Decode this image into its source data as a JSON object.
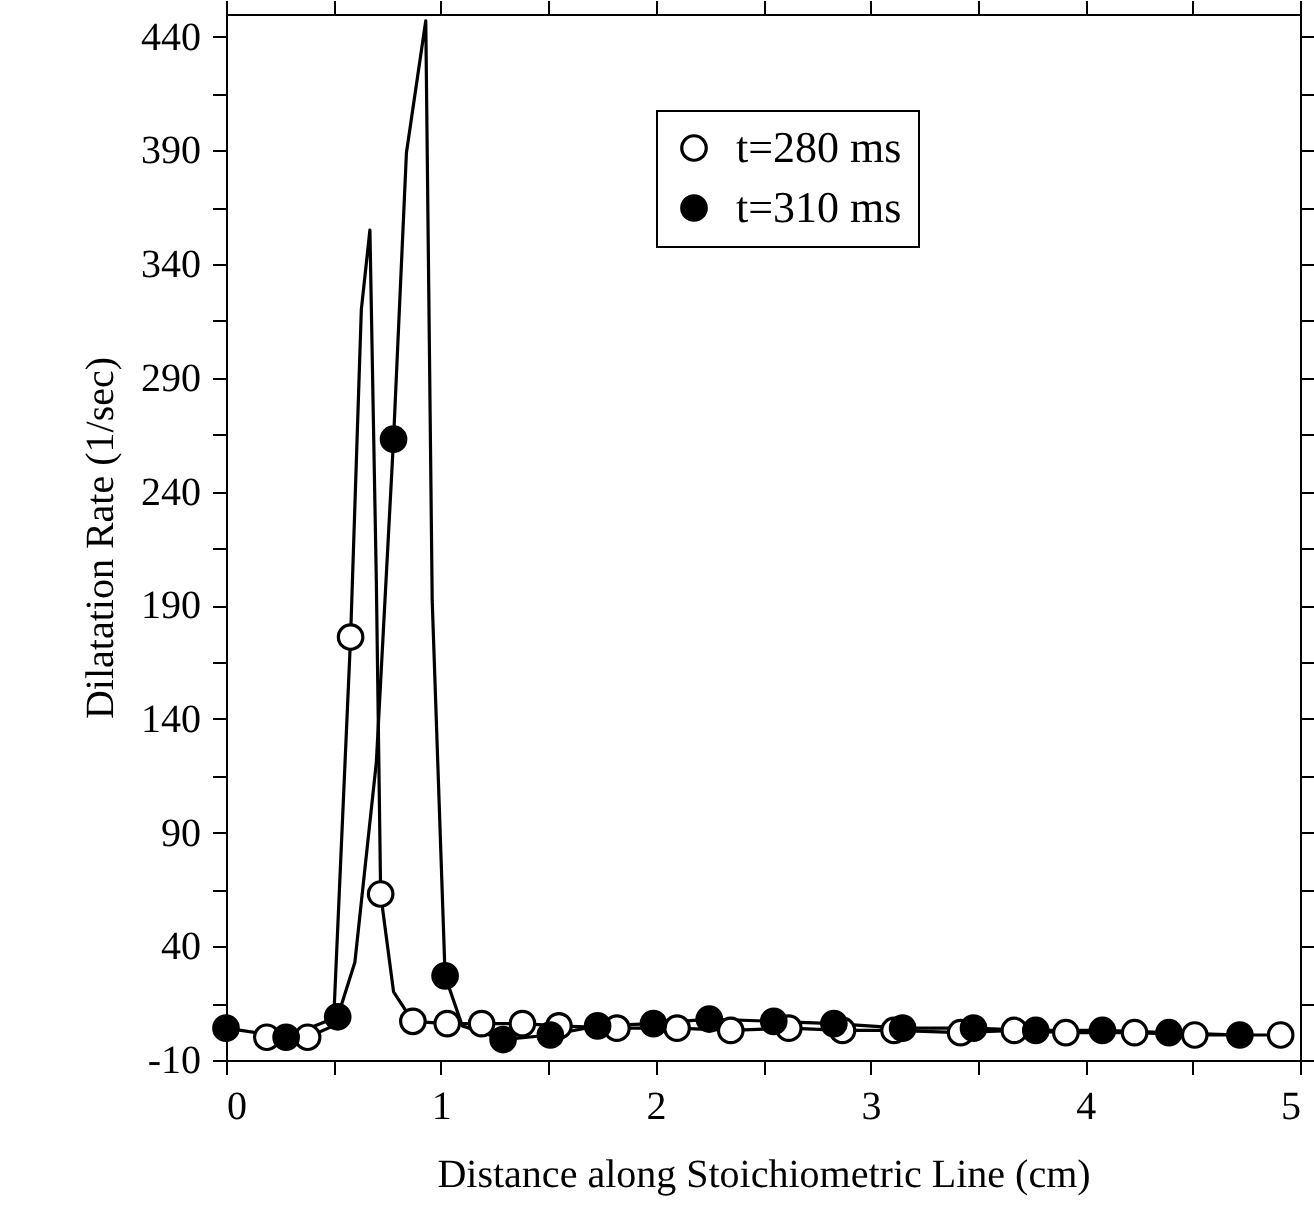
{
  "chart_data": {
    "type": "line",
    "xlabel": "Distance along Stoichiometric Line (cm)",
    "ylabel": "Dilatation Rate (1/sec)",
    "xlim": [
      0,
      5
    ],
    "ylim": [
      -10,
      450
    ],
    "xticks": [
      0,
      {
        "value": 0.5,
        "label": null
      },
      1,
      {
        "value": 1.5,
        "label": null
      },
      2,
      {
        "value": 2.5,
        "label": null
      },
      3,
      {
        "value": 3.5,
        "label": null
      },
      4,
      {
        "value": 4.5,
        "label": null
      },
      5
    ],
    "yticks": [
      -10,
      {
        "value": 15,
        "label": null
      },
      40,
      {
        "value": 65,
        "label": null
      },
      90,
      {
        "value": 115,
        "label": null
      },
      140,
      {
        "value": 165,
        "label": null
      },
      190,
      {
        "value": 215,
        "label": null
      },
      240,
      {
        "value": 265,
        "label": null
      },
      290,
      {
        "value": 315,
        "label": null
      },
      340,
      {
        "value": 365,
        "label": null
      },
      390,
      {
        "value": 415,
        "label": null
      },
      440
    ],
    "grid": false,
    "legend": "top right",
    "line_style": "solid",
    "series": [
      {
        "marker": "none",
        "color": "#000000",
        "x": [
          0.19,
          0.38,
          0.5,
          0.58,
          0.63,
          0.67,
          0.7,
          0.72,
          0.78,
          0.87,
          1.03,
          1.19,
          1.38,
          1.55,
          1.82,
          2.1,
          2.35,
          2.62,
          2.87,
          3.11,
          3.42,
          3.67,
          3.91,
          4.23,
          4.51,
          4.91
        ],
        "values": [
          0,
          0,
          5,
          176,
          320,
          355,
          200,
          63,
          20,
          7,
          6,
          6,
          6,
          5,
          4,
          4,
          3,
          4,
          3,
          3,
          2,
          3,
          2,
          2,
          1,
          1
        ]
      },
      {
        "marker": "none",
        "color": "#000000",
        "x": [
          0,
          0.28,
          0.52,
          0.6,
          0.7,
          0.78,
          0.84,
          0.93,
          0.96,
          1.02,
          1.1,
          1.29,
          1.51,
          1.73,
          1.99,
          2.25,
          2.55,
          2.83,
          3.15,
          3.48,
          3.77,
          4.08,
          4.39,
          4.72
        ],
        "values": [
          4,
          0,
          9,
          33,
          121,
          263,
          389,
          447,
          192,
          27,
          5,
          -1,
          1,
          5,
          6,
          8,
          7,
          6,
          4,
          4,
          3,
          3,
          2,
          1
        ]
      },
      {
        "type": "scatter",
        "name": "t=280 ms",
        "marker": "circle",
        "color": "#ffffff",
        "x": [
          0.19,
          0.38,
          0.58,
          0.72,
          0.87,
          1.03,
          1.19,
          1.38,
          1.55,
          1.82,
          2.1,
          2.35,
          2.62,
          2.87,
          3.11,
          3.42,
          3.67,
          3.91,
          4.23,
          4.51,
          4.91
        ],
        "values": [
          0,
          0,
          176,
          63,
          7,
          6,
          6,
          6,
          5,
          4,
          4,
          3,
          4,
          3,
          3,
          2,
          3,
          2,
          2,
          1,
          1
        ]
      },
      {
        "type": "scatter",
        "name": "t=310 ms",
        "marker": "circle",
        "color": "#000000",
        "x": [
          0,
          0.28,
          0.52,
          0.78,
          1.02,
          1.29,
          1.51,
          1.73,
          1.99,
          2.25,
          2.55,
          2.83,
          3.15,
          3.48,
          3.77,
          4.08,
          4.39,
          4.72
        ],
        "values": [
          4,
          0,
          9,
          263,
          27,
          -1,
          1,
          5,
          6,
          8,
          7,
          6,
          4,
          4,
          3,
          3,
          2,
          1
        ]
      }
    ]
  }
}
